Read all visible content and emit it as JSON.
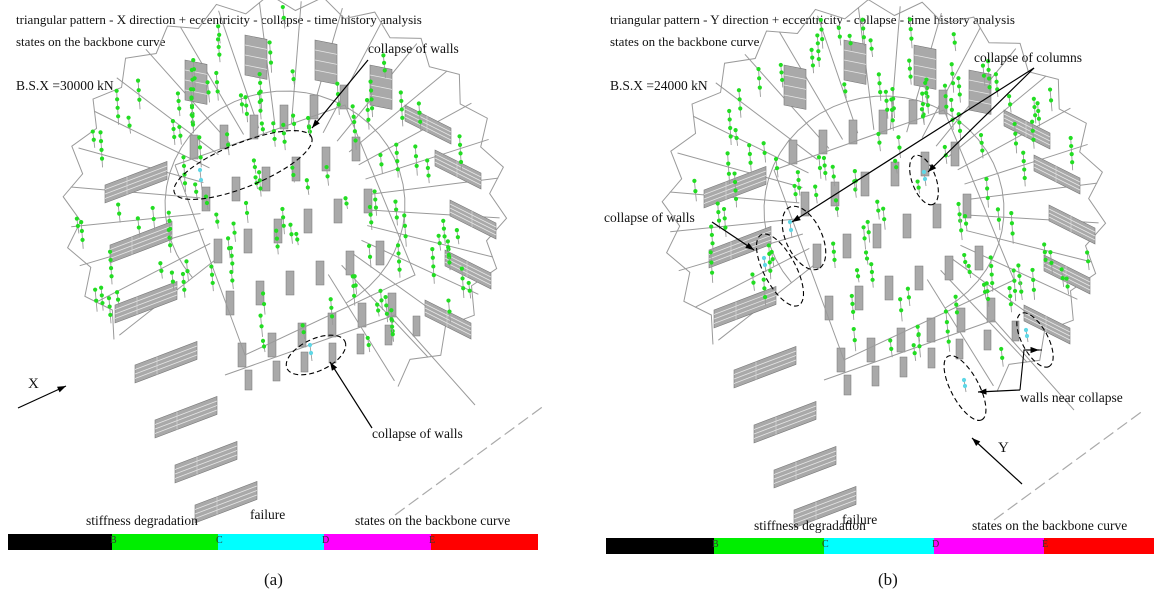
{
  "panels": [
    {
      "title_line1": "triangular pattern - X direction + eccentricity - collapse - time history analysis",
      "title_line2": "states on the backbone curve",
      "base_shear": "B.S.X =30000 kN",
      "annotations": [
        "collapse of walls",
        "collapse of walls"
      ],
      "direction_label": "X",
      "legend_stiffness": "stiffness degradation",
      "legend_failure": "failure",
      "legend_states": "states on the backbone curve",
      "caption": "(a)"
    },
    {
      "title_line1": "triangular pattern - Y direction + eccentricity - collapse - time history analysis",
      "title_line2": "states on the backbone curve",
      "base_shear": "B.S.X =24000 kN",
      "annotations": [
        "collapse of columns",
        "collapse of walls",
        "walls near collapse"
      ],
      "direction_label": "Y",
      "legend_stiffness": "stiffness degradation",
      "legend_failure": "failure",
      "legend_states": "states on the backbone curve",
      "caption": "(b)"
    }
  ],
  "backbone_states": [
    "B",
    "C",
    "D",
    "E"
  ],
  "colors": {
    "state_A": "#000000",
    "state_B": "#00ee00",
    "state_C": "#00ffff",
    "state_D": "#ff00ff",
    "state_E": "#ff0000",
    "wall": "#a9a9a9",
    "frame": "#9a9a9a",
    "hinge_green": "#22dd22",
    "hinge_cyan": "#5fd7e6"
  }
}
